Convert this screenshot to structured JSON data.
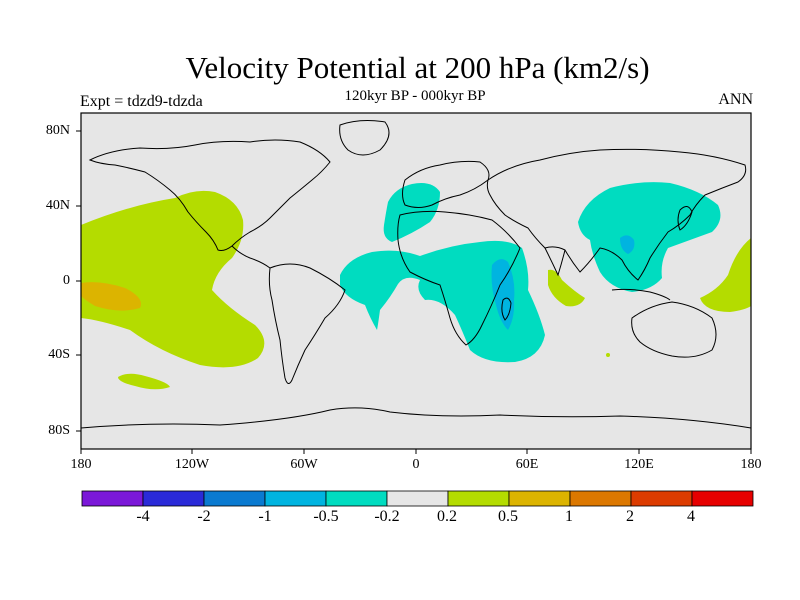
{
  "title": "Velocity Potential at 200 hPa (km2/s)",
  "subtitle": "120kyr BP - 000kyr BP",
  "expt_label": "Expt = tdzd9-tdzda",
  "season_label": "ANN",
  "lat_labels": [
    "80N",
    "40N",
    "0",
    "40S",
    "80S"
  ],
  "lon_labels": [
    "180",
    "120W",
    "60W",
    "0",
    "60E",
    "120E",
    "180"
  ],
  "colorbar": {
    "labels": [
      "-4",
      "-2",
      "-1",
      "-0.5",
      "-0.2",
      "0.2",
      "0.5",
      "1",
      "2",
      "4"
    ],
    "colors": [
      "#7b18d8",
      "#2a2ad8",
      "#0a7ad0",
      "#00b4e0",
      "#00dcc0",
      "#e6e6e6",
      "#b4dc00",
      "#dcb400",
      "#dc7800",
      "#dc3c00",
      "#e60000"
    ]
  },
  "colors": {
    "background": "#e6e6e6",
    "neg_02_05": "#00dcc0",
    "neg_05_1": "#00b4e0",
    "pos_02_05": "#b4dc00",
    "pos_05_1": "#dcb400"
  }
}
